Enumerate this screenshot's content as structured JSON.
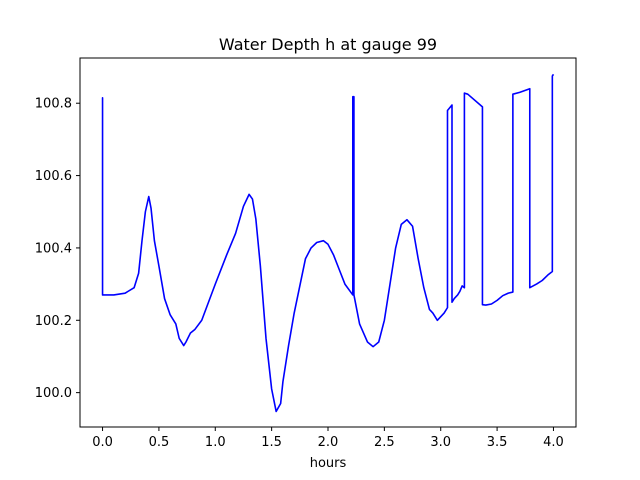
{
  "chart_data": {
    "type": "line",
    "title": "Water Depth h at gauge 99",
    "xlabel": "hours",
    "ylabel": "",
    "xlim": [
      -0.2,
      4.2
    ],
    "ylim": [
      99.905,
      100.925
    ],
    "xticks": [
      0.0,
      0.5,
      1.0,
      1.5,
      2.0,
      2.5,
      3.0,
      3.5,
      4.0
    ],
    "xtick_labels": [
      "0.0",
      "0.5",
      "1.0",
      "1.5",
      "2.0",
      "2.5",
      "3.0",
      "3.5",
      "4.0"
    ],
    "yticks": [
      100.0,
      100.2,
      100.4,
      100.6,
      100.8
    ],
    "ytick_labels": [
      "100.0",
      "100.2",
      "100.4",
      "100.6",
      "100.8"
    ],
    "grid": false,
    "legend": "none",
    "series": [
      {
        "color": "#0000ff",
        "x": [
          0.0,
          0.0,
          0.0,
          0.1,
          0.2,
          0.28,
          0.32,
          0.35,
          0.38,
          0.41,
          0.43,
          0.46,
          0.5,
          0.55,
          0.6,
          0.65,
          0.68,
          0.72,
          0.74,
          0.78,
          0.82,
          0.88,
          1.0,
          1.1,
          1.18,
          1.25,
          1.3,
          1.33,
          1.36,
          1.4,
          1.45,
          1.5,
          1.54,
          1.58,
          1.6,
          1.65,
          1.7,
          1.8,
          1.85,
          1.9,
          1.96,
          2.0,
          2.05,
          2.1,
          2.15,
          2.22,
          2.22,
          2.23,
          2.23,
          2.28,
          2.35,
          2.4,
          2.45,
          2.5,
          2.55,
          2.6,
          2.65,
          2.7,
          2.75,
          2.8,
          2.85,
          2.9,
          2.93,
          2.97,
          3.0,
          3.03,
          3.06,
          3.06,
          3.1,
          3.1,
          3.12,
          3.15,
          3.17,
          3.19,
          3.21,
          3.21,
          3.24,
          3.37,
          3.37,
          3.4,
          3.45,
          3.5,
          3.55,
          3.6,
          3.64,
          3.64,
          3.7,
          3.79,
          3.79,
          3.85,
          3.9,
          3.95,
          3.99,
          3.99,
          4.0
        ],
        "y": [
          100.27,
          100.815,
          100.27,
          100.27,
          100.275,
          100.29,
          100.33,
          100.42,
          100.5,
          100.542,
          100.51,
          100.42,
          100.35,
          100.26,
          100.215,
          100.19,
          100.15,
          100.13,
          100.14,
          100.165,
          100.175,
          100.2,
          100.3,
          100.38,
          100.44,
          100.515,
          100.548,
          100.535,
          100.48,
          100.35,
          100.15,
          100.01,
          99.948,
          99.97,
          100.03,
          100.13,
          100.22,
          100.37,
          100.4,
          100.415,
          100.42,
          100.41,
          100.38,
          100.34,
          100.3,
          100.27,
          100.818,
          100.818,
          100.27,
          100.19,
          100.14,
          100.127,
          100.14,
          100.2,
          100.3,
          100.4,
          100.465,
          100.478,
          100.46,
          100.37,
          100.29,
          100.23,
          100.22,
          100.2,
          100.21,
          100.22,
          100.235,
          100.78,
          100.795,
          100.25,
          100.26,
          100.27,
          100.28,
          100.295,
          100.29,
          100.828,
          100.825,
          100.79,
          100.243,
          100.242,
          100.245,
          100.255,
          100.268,
          100.275,
          100.278,
          100.825,
          100.83,
          100.84,
          100.29,
          100.3,
          100.31,
          100.325,
          100.335,
          100.875,
          100.88
        ]
      }
    ]
  }
}
